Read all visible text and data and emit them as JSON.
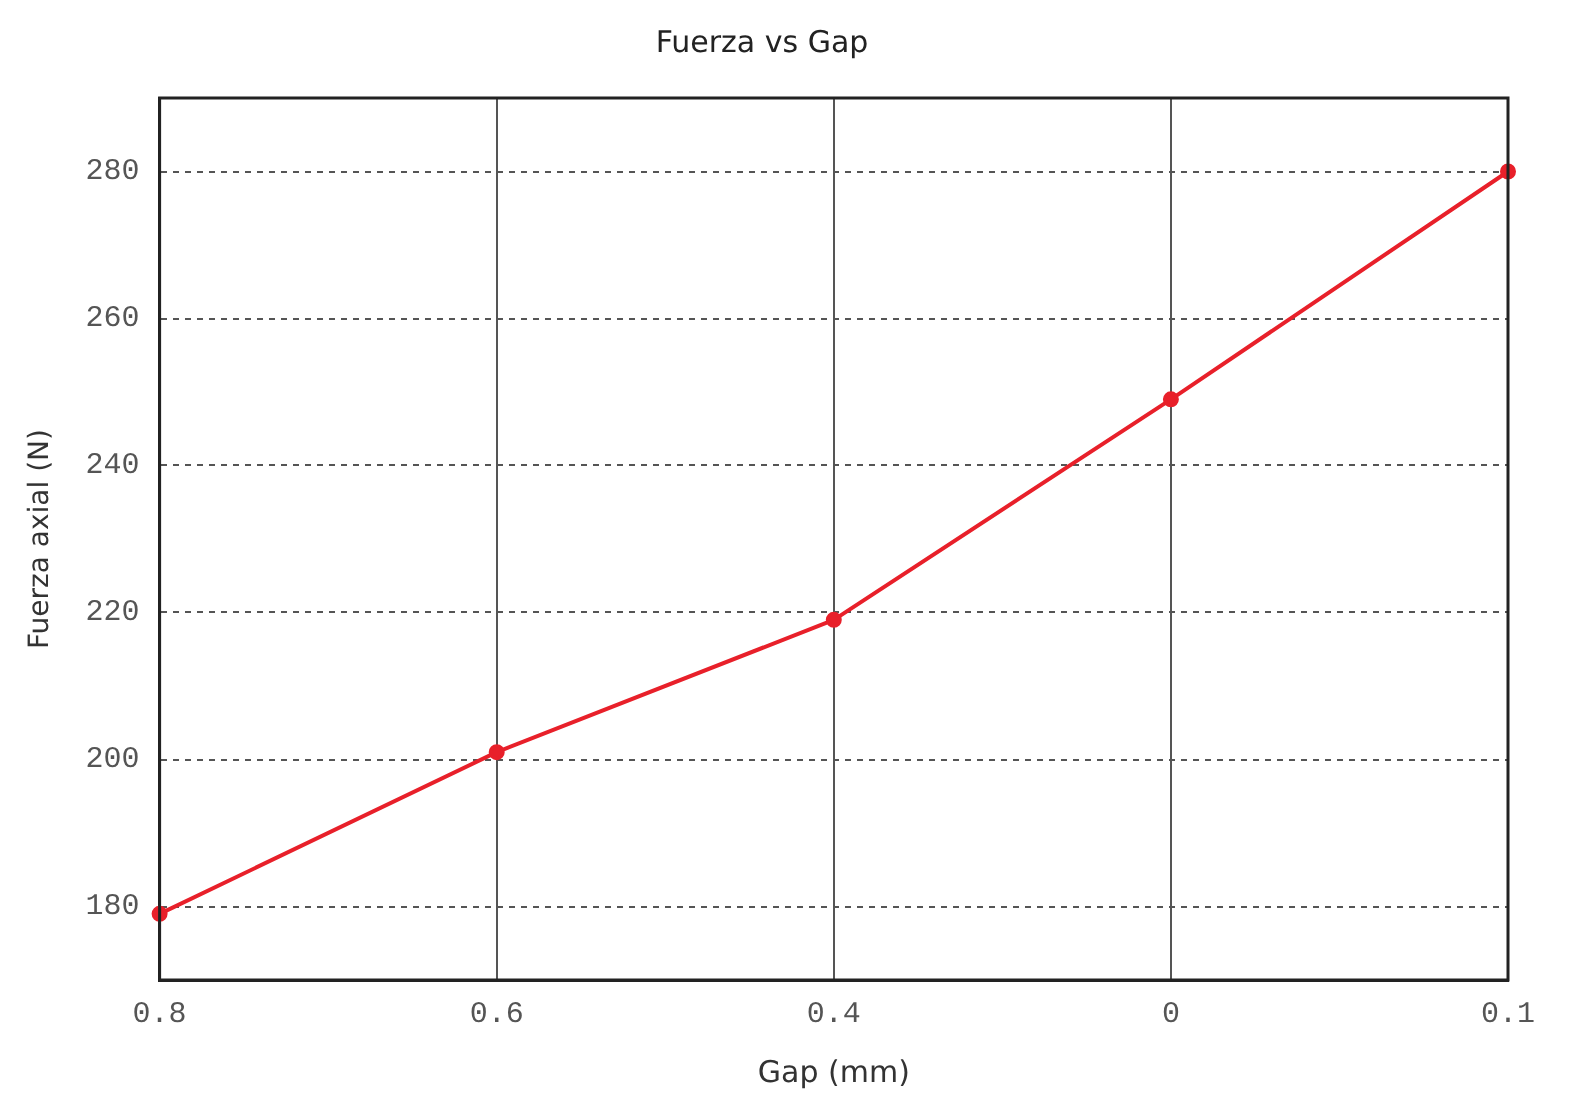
{
  "chart_data": {
    "type": "line",
    "title": "Fuerza vs Gap",
    "xlabel": "Gap (mm)",
    "ylabel": "Fuerza axial (N)",
    "categories": [
      "0.8",
      "0.6",
      "0.4",
      "0",
      "0.1"
    ],
    "series": [
      {
        "color": "#e8202a",
        "values": [
          179,
          201,
          219,
          249,
          280
        ]
      }
    ],
    "ylim": [
      170,
      290
    ],
    "yticks": [
      180,
      200,
      220,
      240,
      260,
      280
    ],
    "grid": true,
    "marker": "circle",
    "line_style": "solid",
    "legend": false
  }
}
